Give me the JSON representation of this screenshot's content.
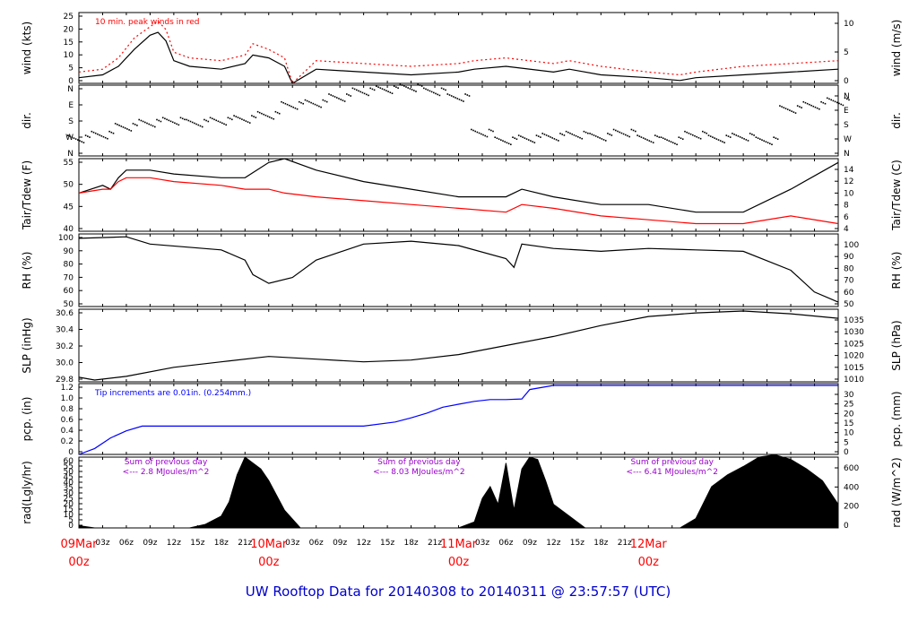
{
  "title": "UW Rooftop Data for 20140308  to  20140311 @ 23:57:57  (UTC)",
  "colors": {
    "black": "#000000",
    "red": "#ff0000",
    "blue": "#0000ff",
    "purple": "#9900cc",
    "date": "#ff0000",
    "title": "#0000cc"
  },
  "x_axis": {
    "hour_ticks": [
      "03z",
      "06z",
      "09z",
      "12z",
      "15z",
      "18z",
      "21z",
      "03z",
      "06z",
      "09z",
      "12z",
      "15z",
      "18z",
      "21z",
      "03z",
      "06z",
      "09z",
      "12z",
      "15z",
      "18z",
      "21z"
    ],
    "day_labels": [
      {
        "line1": "09Mar",
        "line2": "00z"
      },
      {
        "line1": "10Mar",
        "line2": "00z"
      },
      {
        "line1": "11Mar",
        "line2": "00z"
      },
      {
        "line1": "12Mar",
        "line2": "00z"
      }
    ]
  },
  "chart_data": [
    {
      "type": "line",
      "name": "wind",
      "left_label": "wind (kts)",
      "right_label": "wind (m/s)",
      "ylim": [
        0,
        25
      ],
      "left_ticks": [
        "0",
        "5",
        "10",
        "15",
        "20",
        "25"
      ],
      "right_ticks": [
        "0",
        "5",
        "10"
      ],
      "annotation": "10 min. peak winds in red",
      "x_hours": [
        0,
        3,
        5,
        7,
        9,
        10,
        11,
        12,
        14,
        18,
        21,
        22,
        24,
        26,
        27,
        30,
        36,
        42,
        48,
        50,
        54,
        60,
        62,
        66,
        72,
        76,
        78,
        84,
        90,
        96
      ],
      "series": [
        {
          "name": "wind",
          "values": [
            2,
            3,
            6,
            12,
            17,
            18,
            15,
            8,
            6,
            5,
            7,
            10,
            9,
            6,
            0,
            5,
            4,
            3,
            4,
            5,
            6,
            4,
            5,
            3,
            2,
            1,
            2,
            3,
            4,
            5
          ]
        },
        {
          "name": "peak",
          "values": [
            4,
            5,
            9,
            16,
            20,
            22,
            19,
            11,
            9,
            8,
            10,
            14,
            12,
            9,
            0,
            8,
            7,
            6,
            7,
            8,
            9,
            7,
            8,
            6,
            4,
            3,
            4,
            6,
            7,
            8
          ]
        }
      ]
    },
    {
      "type": "scatter",
      "name": "dir",
      "left_label": "dir.",
      "right_label": "dir.",
      "left_ticks": [
        "N",
        "W",
        "S",
        "E",
        "N"
      ],
      "right_ticks": [
        "N",
        "W",
        "S",
        "E",
        "N"
      ],
      "x_hours": [
        0,
        3,
        6,
        9,
        12,
        15,
        18,
        21,
        24,
        27,
        30,
        33,
        36,
        39,
        42,
        45,
        48,
        51,
        54,
        57,
        60,
        63,
        66,
        69,
        72,
        75,
        78,
        81,
        84,
        87,
        90,
        93,
        96
      ],
      "values": [
        90,
        110,
        150,
        170,
        180,
        170,
        180,
        190,
        210,
        260,
        270,
        300,
        330,
        340,
        350,
        330,
        300,
        120,
        80,
        90,
        100,
        110,
        100,
        120,
        90,
        80,
        110,
        90,
        100,
        80,
        240,
        260,
        280
      ]
    },
    {
      "type": "line",
      "name": "temperature",
      "left_label": "Tair/Tdew (F)",
      "right_label": "Tair/Tdew (C)",
      "ylim": [
        38,
        57
      ],
      "left_ticks": [
        "40",
        "45",
        "50",
        "55"
      ],
      "right_ticks": [
        "4",
        "6",
        "8",
        "10",
        "12",
        "14"
      ],
      "x_hours": [
        0,
        3,
        4,
        5,
        6,
        9,
        12,
        18,
        21,
        24,
        26,
        30,
        36,
        42,
        48,
        54,
        56,
        60,
        66,
        72,
        78,
        84,
        90,
        96
      ],
      "series": [
        {
          "name": "Tair",
          "values": [
            48,
            50,
            49,
            52,
            54,
            54,
            53,
            52,
            52,
            56,
            57,
            54,
            51,
            49,
            47,
            47,
            49,
            47,
            45,
            45,
            43,
            43,
            49,
            56
          ]
        },
        {
          "name": "Tdew",
          "values": [
            48,
            49,
            49,
            51,
            52,
            52,
            51,
            50,
            49,
            49,
            48,
            47,
            46,
            45,
            44,
            43,
            45,
            44,
            42,
            41,
            40,
            40,
            42,
            40
          ]
        }
      ]
    },
    {
      "type": "line",
      "name": "rh",
      "left_label": "RH (%)",
      "right_label": "RH (%)",
      "ylim": [
        50,
        100
      ],
      "left_ticks": [
        "50",
        "60",
        "70",
        "80",
        "90",
        "100"
      ],
      "right_ticks": [
        "50",
        "60",
        "70",
        "80",
        "90",
        "100"
      ],
      "x_hours": [
        0,
        6,
        9,
        18,
        21,
        22,
        24,
        27,
        30,
        36,
        42,
        48,
        54,
        55,
        56,
        60,
        66,
        72,
        78,
        84,
        90,
        93,
        96
      ],
      "values": [
        97,
        98,
        93,
        89,
        82,
        72,
        66,
        70,
        82,
        93,
        95,
        92,
        83,
        77,
        93,
        90,
        88,
        90,
        89,
        88,
        75,
        60,
        53
      ]
    },
    {
      "type": "line",
      "name": "slp",
      "left_label": "SLP (inHg)",
      "right_label": "SLP (hPa)",
      "ylim": [
        29.8,
        30.6
      ],
      "left_ticks": [
        "29.8",
        "30.0",
        "30.2",
        "30.4",
        "30.6"
      ],
      "right_ticks": [
        "1010",
        "1015",
        "1020",
        "1025",
        "1030",
        "1035"
      ],
      "x_hours": [
        0,
        2,
        6,
        12,
        18,
        24,
        30,
        36,
        42,
        48,
        54,
        60,
        66,
        72,
        78,
        84,
        90,
        96
      ],
      "values": [
        29.85,
        29.82,
        29.86,
        29.96,
        30.02,
        30.08,
        30.05,
        30.02,
        30.04,
        30.1,
        30.2,
        30.3,
        30.42,
        30.52,
        30.56,
        30.58,
        30.55,
        30.5
      ]
    },
    {
      "type": "line",
      "name": "pcp",
      "left_label": "pcp. (in)",
      "right_label": "pcp. (mm)",
      "ylim": [
        0,
        1.2
      ],
      "left_ticks": [
        "0",
        "0.2",
        "0.4",
        "0.6",
        "0.8",
        "1.0",
        "1.2"
      ],
      "right_ticks": [
        "0",
        "5",
        "10",
        "15",
        "20",
        "25",
        "30"
      ],
      "annotation": "Tip increments are 0.01in. (0.254mm.)",
      "x_hours": [
        0,
        2,
        4,
        6,
        8,
        12,
        24,
        36,
        40,
        42,
        44,
        46,
        48,
        50,
        52,
        54,
        56,
        57,
        60,
        72,
        84,
        96
      ],
      "values": [
        0,
        0.1,
        0.28,
        0.4,
        0.48,
        0.48,
        0.48,
        0.48,
        0.55,
        0.62,
        0.7,
        0.8,
        0.85,
        0.9,
        0.93,
        0.93,
        0.94,
        1.1,
        1.17,
        1.17,
        1.17,
        1.17
      ]
    },
    {
      "type": "area",
      "name": "rad",
      "left_label": "rad(Lgly/hr)",
      "right_label": "rad (W/m^2)",
      "ylim": [
        0,
        60
      ],
      "left_ticks": [
        "0",
        "5",
        "10",
        "15",
        "20",
        "25",
        "30",
        "35",
        "40",
        "45",
        "50",
        "55",
        "60"
      ],
      "right_ticks": [
        "0",
        "200",
        "400",
        "600"
      ],
      "annotations": [
        {
          "line1": "Sum of previous day",
          "line2": "<--- 2.8 MJoules/m^2"
        },
        {
          "line1": "Sum of previous day",
          "line2": "<--- 8.03 MJoules/m^2"
        },
        {
          "line1": "Sum of previous day",
          "line2": "<--- 6.41 MJoules/m^2"
        }
      ],
      "x_hours": [
        0,
        1,
        2,
        14,
        16,
        18,
        19,
        20,
        21,
        22,
        23,
        24,
        26,
        28,
        48,
        50,
        51,
        52,
        53,
        54,
        55,
        56,
        57,
        58,
        59,
        60,
        62,
        63,
        64,
        72,
        76,
        78,
        80,
        82,
        84,
        86,
        88,
        90,
        92,
        94,
        96
      ],
      "values": [
        2,
        1,
        0,
        0,
        3,
        10,
        22,
        45,
        60,
        55,
        50,
        40,
        15,
        0,
        0,
        5,
        25,
        35,
        20,
        55,
        15,
        50,
        60,
        58,
        40,
        20,
        10,
        5,
        0,
        0,
        0,
        8,
        35,
        45,
        52,
        60,
        62,
        58,
        50,
        40,
        20
      ]
    }
  ]
}
